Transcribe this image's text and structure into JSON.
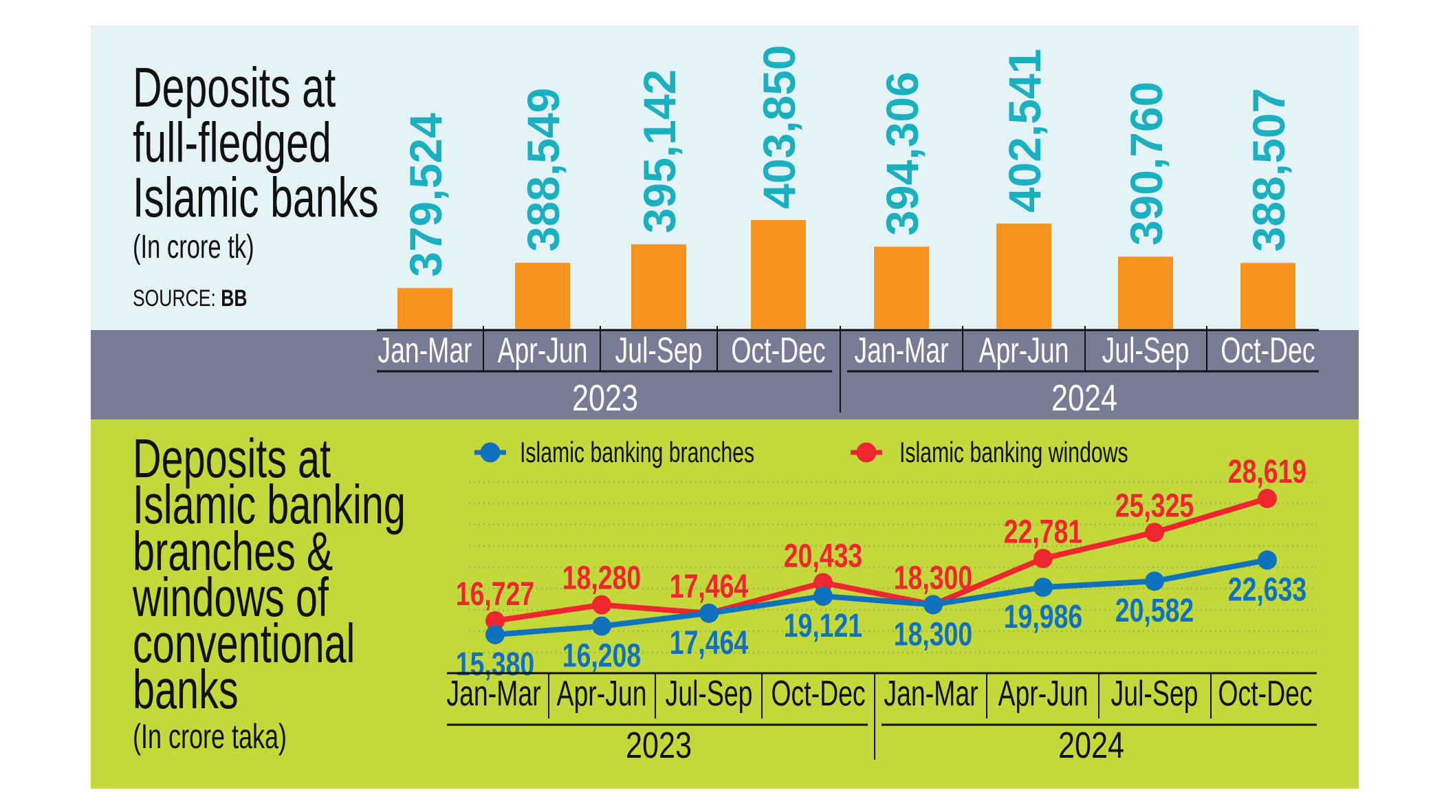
{
  "colors": {
    "top_bg": "#e4f3f7",
    "axis_band": "#777c95",
    "bottom_bg": "#c3d93b",
    "bar": "#f7931e",
    "bar_label": "#1bb0c0",
    "branches": "#0f72bd",
    "windows": "#ed2630",
    "grid": "#9fbf3a"
  },
  "chart_data": [
    {
      "type": "bar",
      "title_lines": [
        "Deposits at",
        "full-fledged",
        "Islamic banks"
      ],
      "unit": "(In crore tk)",
      "source_label": "SOURCE:",
      "source_value": "BB",
      "categories": [
        "Jan-Mar",
        "Apr-Jun",
        "Jul-Sep",
        "Oct-Dec",
        "Jan-Mar",
        "Apr-Jun",
        "Jul-Sep",
        "Oct-Dec"
      ],
      "groups": [
        "2023",
        "2024"
      ],
      "values": [
        379524,
        388549,
        395142,
        403850,
        394306,
        402541,
        390760,
        388507
      ],
      "value_labels": [
        "379,524",
        "388,549",
        "395,142",
        "403,850",
        "394,306",
        "402,541",
        "390,760",
        "388,507"
      ],
      "ylim": [
        365000,
        410000
      ]
    },
    {
      "type": "line",
      "title_lines": [
        "Deposits at",
        "Islamic banking",
        "branches &",
        "windows of",
        "conventional",
        "banks"
      ],
      "unit": "(In crore taka)",
      "categories": [
        "Jan-Mar",
        "Apr-Jun",
        "Jul-Sep",
        "Oct-Dec",
        "Jan-Mar",
        "Apr-Jun",
        "Jul-Sep",
        "Oct-Dec"
      ],
      "groups": [
        "2023",
        "2024"
      ],
      "grid": true,
      "legend": "top",
      "ylim": [
        15380,
        28619
      ],
      "series": [
        {
          "name": "Islamic banking branches",
          "values": [
            15380,
            16208,
            17464,
            19121,
            18300,
            19986,
            20582,
            22633
          ],
          "labels": [
            "15,380",
            "16,208",
            "17,464",
            "19,121",
            "18,300",
            "19,986",
            "20,582",
            "22,633"
          ]
        },
        {
          "name": "Islamic banking windows",
          "values": [
            16727,
            18280,
            17464,
            20433,
            18300,
            22781,
            25325,
            28619
          ],
          "labels": [
            "16,727",
            "18,280",
            "17,464",
            "20,433",
            "18,300",
            "22,781",
            "25,325",
            "28,619"
          ]
        }
      ]
    }
  ]
}
